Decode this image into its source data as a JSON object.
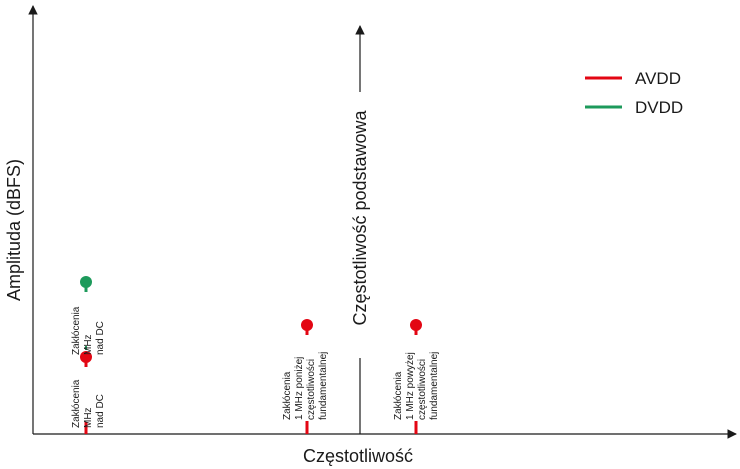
{
  "axes": {
    "x_label": "Częstotliwość",
    "y_label": "Amplituda (dBFS)"
  },
  "fundamental": {
    "label": "Częstotliwość podstawowa"
  },
  "legend": [
    {
      "name": "AVDD",
      "color": "#e30613"
    },
    {
      "name": "DVDD",
      "color": "#1d9a5b"
    }
  ],
  "spurs": {
    "dc_avdd": {
      "lines": [
        "Zakłócenia",
        "MHz",
        "nad DC"
      ],
      "color": "#e30613"
    },
    "dc_dvdd": {
      "lines": [
        "Zakłócenia",
        "MHz",
        "nad DC"
      ],
      "color": "#1d9a5b"
    },
    "below": {
      "lines": [
        "Zakłócenia",
        "1 MHz poniżej",
        "częstotliwości",
        "fundamentalnej"
      ],
      "color": "#e30613"
    },
    "above": {
      "lines": [
        "Zakłócenia",
        "1 MHz powyżej",
        "częstotliwości",
        "fundamentalnej"
      ],
      "color": "#e30613"
    }
  }
}
